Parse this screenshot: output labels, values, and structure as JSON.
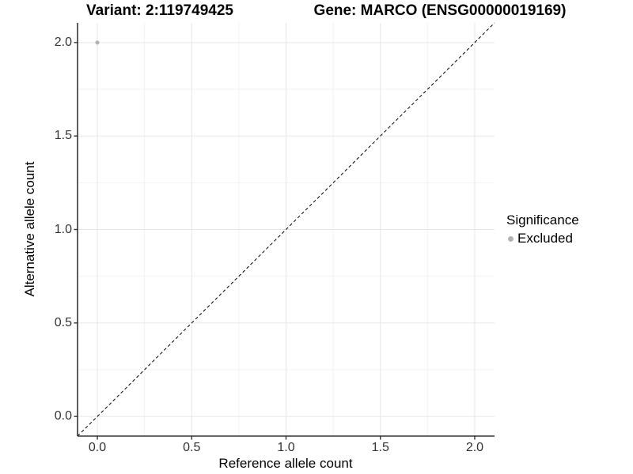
{
  "chart_data": {
    "type": "scatter",
    "title_left": "Variant: 2:119749425",
    "title_right": "Gene: MARCO (ENSG00000019169)",
    "xlabel": "Reference allele count",
    "ylabel": "Alternative allele count",
    "xlim": [
      -0.105,
      2.105
    ],
    "ylim": [
      -0.105,
      2.105
    ],
    "x_ticks": {
      "values": [
        0,
        0.5,
        1,
        1.5,
        2
      ],
      "labels": [
        "0.0",
        "0.5",
        "1.0",
        "1.5",
        "2.0"
      ]
    },
    "y_ticks": {
      "values": [
        0,
        0.5,
        1,
        1.5,
        2
      ],
      "labels": [
        "0.0",
        "0.5",
        "1.0",
        "1.5",
        "2.0"
      ]
    },
    "x_minor": [
      0.25,
      0.75,
      1.25,
      1.75
    ],
    "y_minor": [
      0.25,
      0.75,
      1.25,
      1.75
    ],
    "series": [
      {
        "name": "Excluded",
        "color": "#b3b3b3",
        "points": [
          {
            "x": 0,
            "y": 2
          }
        ]
      }
    ],
    "reference_line": {
      "slope": 1,
      "intercept": 0,
      "style": "dashed",
      "color": "#000000"
    },
    "grid": "major+minor",
    "legend_position": "right",
    "legend_title": "Significance"
  },
  "colors": {
    "background": "#ffffff",
    "grid_major": "#e6e6e6",
    "grid_minor": "#f2f2f2",
    "axis_line": "#333333",
    "tick_mark": "#333333",
    "tick_text": "#333333",
    "point": "#b3b3b3"
  }
}
